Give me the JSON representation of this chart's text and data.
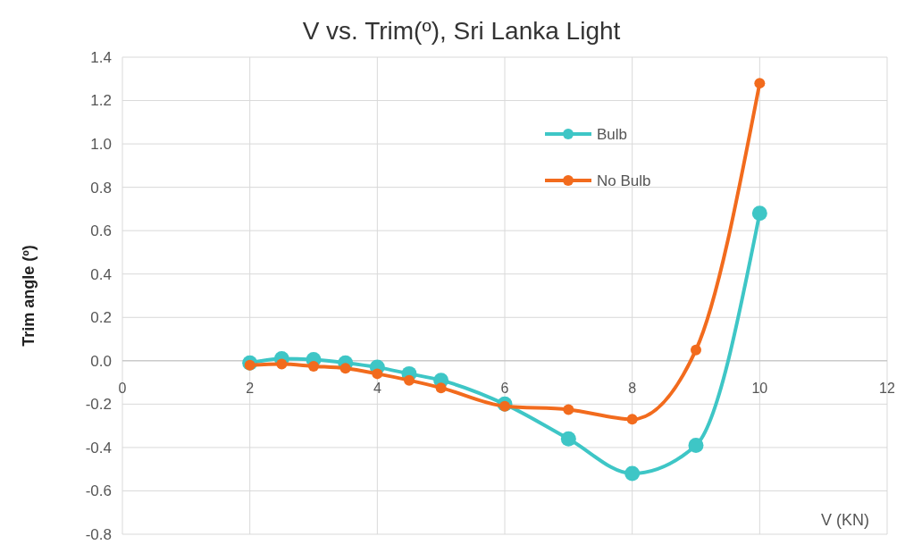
{
  "chart_data": {
    "type": "line",
    "title": "V vs. Trim(º), Sri Lanka Light",
    "xlabel": "V (KN)",
    "ylabel": "Trim angle (º)",
    "x": [
      2,
      2.5,
      3,
      3.5,
      4,
      4.5,
      5,
      6,
      7,
      8,
      9,
      10
    ],
    "series": [
      {
        "name": "Bulb",
        "color": "#3ec6c6",
        "values": [
          -0.01,
          0.01,
          0.005,
          -0.01,
          -0.03,
          -0.06,
          -0.09,
          -0.2,
          -0.36,
          -0.52,
          -0.39,
          0.68
        ]
      },
      {
        "name": "No Bulb",
        "color": "#f26b1d",
        "values": [
          -0.02,
          -0.015,
          -0.025,
          -0.035,
          -0.06,
          -0.09,
          -0.125,
          -0.21,
          -0.225,
          -0.27,
          0.05,
          1.28
        ]
      }
    ],
    "xlim": [
      0,
      12
    ],
    "xticks": [
      0,
      2,
      4,
      6,
      8,
      10,
      12
    ],
    "ylim": [
      -0.8,
      1.4
    ],
    "yticks": [
      {
        "value": -0.8,
        "label": "-0.8"
      },
      {
        "value": -0.6,
        "label": "-0.6"
      },
      {
        "value": -0.4,
        "label": "-0.4"
      },
      {
        "value": -0.2,
        "label": "-0.2"
      },
      {
        "value": 0,
        "label": "0.0"
      },
      {
        "value": 0.2,
        "label": "0.2"
      },
      {
        "value": 0.4,
        "label": "0.4"
      },
      {
        "value": 0.6,
        "label": "0.6"
      },
      {
        "value": 0.8,
        "label": "0.8"
      },
      {
        "value": 1,
        "label": "1.0"
      },
      {
        "value": 1.2,
        "label": "1.2"
      },
      {
        "value": 1.4,
        "label": "1.4"
      }
    ],
    "grid": true,
    "legend": "top right",
    "marker": "circle",
    "line_style": "solid"
  }
}
